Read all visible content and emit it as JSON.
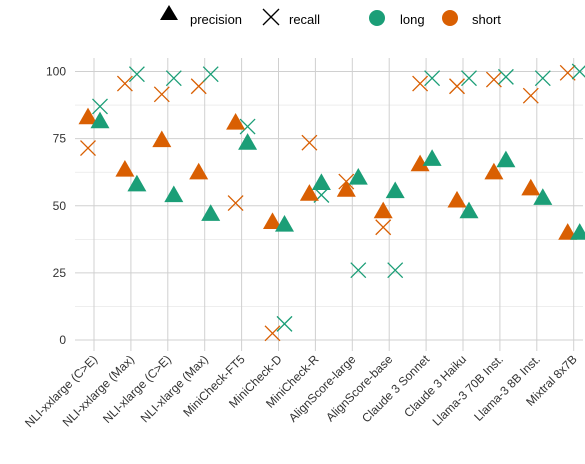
{
  "chart_data": {
    "type": "scatter",
    "legend": {
      "placement": "top",
      "metrics": [
        {
          "label": "precision",
          "marker": "triangle"
        },
        {
          "label": "recall",
          "marker": "cross"
        }
      ],
      "groups": [
        {
          "label": "long",
          "color": "#1b9e77"
        },
        {
          "label": "short",
          "color": "#d95f02"
        }
      ]
    },
    "categories": [
      "NLI-xxlarge (C>E)",
      "NLI-xxlarge (Max)",
      "NLI-xlarge (C>E)",
      "NLI-xlarge (Max)",
      "MiniCheck-FT5",
      "MiniCheck-D",
      "MiniCheck-R",
      "AlignScore-large",
      "AlignScore-base",
      "Claude 3 Sonnet",
      "Claude 3 Haiku",
      "Llama-3 70B Inst.",
      "Llama-3 8B Inst.",
      "Mixtral 8x7B"
    ],
    "ylim": [
      0,
      104
    ],
    "yticks": [
      0,
      25,
      50,
      75,
      100
    ],
    "grid": true,
    "series": [
      {
        "name": "short precision",
        "group": "short",
        "metric": "precision",
        "values": [
          83,
          63.5,
          74.5,
          62.5,
          81,
          44,
          54.5,
          56,
          48,
          65.5,
          52,
          62.5,
          56.5,
          40
        ]
      },
      {
        "name": "long precision",
        "group": "long",
        "metric": "precision",
        "values": [
          81.5,
          58,
          54,
          47,
          73.5,
          43,
          58.5,
          60.5,
          55.5,
          67.5,
          48,
          67,
          53,
          40
        ]
      },
      {
        "name": "short recall",
        "group": "short",
        "metric": "recall",
        "values": [
          71.5,
          95.5,
          91.5,
          94.5,
          51,
          2.5,
          73.5,
          59,
          42,
          95.5,
          94.5,
          97,
          91,
          99.5
        ]
      },
      {
        "name": "long recall",
        "group": "long",
        "metric": "recall",
        "values": [
          87,
          99,
          97.5,
          99,
          79.5,
          6,
          54,
          26,
          26,
          97.5,
          97.5,
          98,
          97.5,
          100
        ]
      }
    ]
  }
}
